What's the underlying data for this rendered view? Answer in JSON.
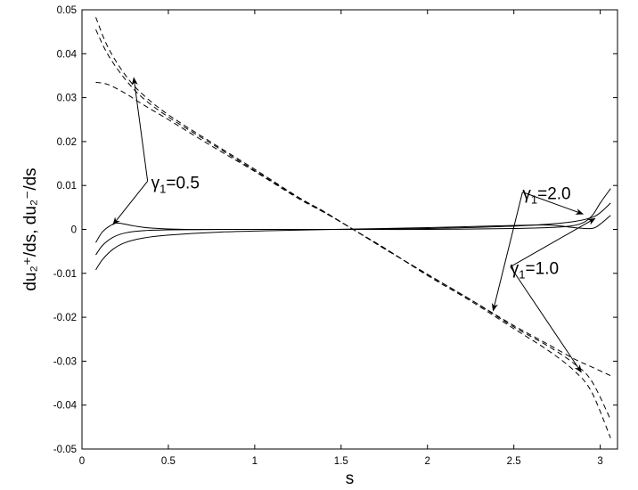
{
  "chart_data": {
    "type": "line",
    "title": "",
    "xlabel": "s",
    "ylabel": "du₂⁺/ds, du₂⁻/ds",
    "xlim": [
      0,
      3.1
    ],
    "ylim": [
      -0.05,
      0.05
    ],
    "xticks": [
      0,
      0.5,
      1,
      1.5,
      2,
      2.5,
      3
    ],
    "xtick_labels": [
      "0",
      "0.5",
      "1",
      "1.5",
      "2",
      "2.5",
      "3"
    ],
    "yticks": [
      -0.05,
      -0.04,
      -0.03,
      -0.02,
      -0.01,
      0,
      0.01,
      0.02,
      0.03,
      0.04,
      0.05
    ],
    "ytick_labels": [
      "-0.05",
      "-0.04",
      "-0.03",
      "-0.02",
      "-0.01",
      "0",
      "0.01",
      "0.02",
      "0.03",
      "0.04",
      "0.05"
    ],
    "grid": false,
    "legend": "none",
    "series": [
      {
        "style": "dashed",
        "x": [
          0.08,
          0.15,
          0.25,
          0.35,
          0.5,
          0.75,
          1.0,
          1.25,
          1.4,
          1.57,
          1.75,
          2.0,
          2.25,
          2.5,
          2.7,
          2.85,
          2.95,
          3.06
        ],
        "y": [
          0.0483,
          0.0415,
          0.0352,
          0.0308,
          0.0261,
          0.0198,
          0.0137,
          0.0074,
          0.0041,
          0.0,
          -0.0042,
          -0.0105,
          -0.0163,
          -0.0226,
          -0.0276,
          -0.0322,
          -0.037,
          -0.0475
        ]
      },
      {
        "style": "dashed",
        "x": [
          0.08,
          0.15,
          0.25,
          0.35,
          0.5,
          0.75,
          1.0,
          1.25,
          1.4,
          1.57,
          1.75,
          2.0,
          2.25,
          2.5,
          2.7,
          2.85,
          2.95,
          3.06
        ],
        "y": [
          0.0455,
          0.0398,
          0.0342,
          0.03,
          0.0256,
          0.0195,
          0.0134,
          0.0073,
          0.004,
          0.0,
          -0.0043,
          -0.0103,
          -0.016,
          -0.0222,
          -0.0266,
          -0.0306,
          -0.0345,
          -0.0433
        ]
      },
      {
        "style": "dashed",
        "x": [
          0.08,
          0.15,
          0.25,
          0.35,
          0.5,
          0.75,
          1.0,
          1.25,
          1.4,
          1.57,
          1.75,
          2.0,
          2.25,
          2.5,
          2.7,
          2.85,
          2.95,
          3.06
        ],
        "y": [
          0.0335,
          0.033,
          0.031,
          0.0285,
          0.025,
          0.019,
          0.0132,
          0.0071,
          0.0039,
          0.0,
          -0.0044,
          -0.0102,
          -0.016,
          -0.0219,
          -0.0262,
          -0.0295,
          -0.0313,
          -0.0333
        ]
      },
      {
        "style": "solid",
        "x": [
          0.08,
          0.12,
          0.18,
          0.22,
          0.3,
          0.4,
          0.6,
          1.0,
          1.5,
          2.0,
          2.5,
          2.75,
          2.88,
          2.95,
          3.0,
          3.06
        ],
        "y": [
          -0.003,
          -0.0005,
          0.0012,
          0.0014,
          0.0008,
          0.0003,
          0.0,
          0.0,
          0.0,
          0.0,
          0.0002,
          0.0005,
          0.0012,
          0.003,
          0.006,
          0.0093
        ]
      },
      {
        "style": "solid",
        "x": [
          0.08,
          0.12,
          0.18,
          0.25,
          0.35,
          0.5,
          0.8,
          1.2,
          1.6,
          2.0,
          2.4,
          2.7,
          2.85,
          2.95,
          3.0,
          3.06
        ],
        "y": [
          -0.0058,
          -0.0036,
          -0.0018,
          -0.0008,
          -0.0003,
          -0.0001,
          0.0,
          0.0,
          0.0,
          0.0002,
          0.0006,
          0.0012,
          0.0018,
          0.0027,
          0.0038,
          0.006
        ]
      },
      {
        "style": "solid",
        "x": [
          0.08,
          0.12,
          0.18,
          0.25,
          0.35,
          0.5,
          0.8,
          1.2,
          1.6,
          2.0,
          2.4,
          2.7,
          2.85,
          2.95,
          3.0,
          3.06
        ],
        "y": [
          -0.0092,
          -0.0068,
          -0.0045,
          -0.003,
          -0.002,
          -0.0013,
          -0.0006,
          -0.0002,
          0.0001,
          0.0004,
          0.0008,
          0.001,
          0.0004,
          0.0002,
          0.0012,
          0.0032
        ]
      }
    ],
    "annotations": [
      {
        "label_main": "γ",
        "label_sub": "1",
        "label_value": "=0.5",
        "anchor": [
          0.38,
          0.011
        ],
        "arrows_to": [
          [
            0.3,
            0.0345
          ],
          [
            0.18,
            0.0011
          ]
        ]
      },
      {
        "label_main": "γ",
        "label_sub": "1",
        "label_value": "=2.0",
        "anchor": [
          2.55,
          0.0085
        ],
        "arrows_to": [
          [
            2.9,
            0.0035
          ],
          [
            2.38,
            -0.0185
          ]
        ]
      },
      {
        "label_main": "γ",
        "label_sub": "1",
        "label_value": "=1.0",
        "anchor": [
          2.48,
          -0.0085
        ],
        "arrows_to": [
          [
            2.97,
            0.0025
          ],
          [
            2.89,
            -0.0325
          ]
        ]
      }
    ]
  }
}
